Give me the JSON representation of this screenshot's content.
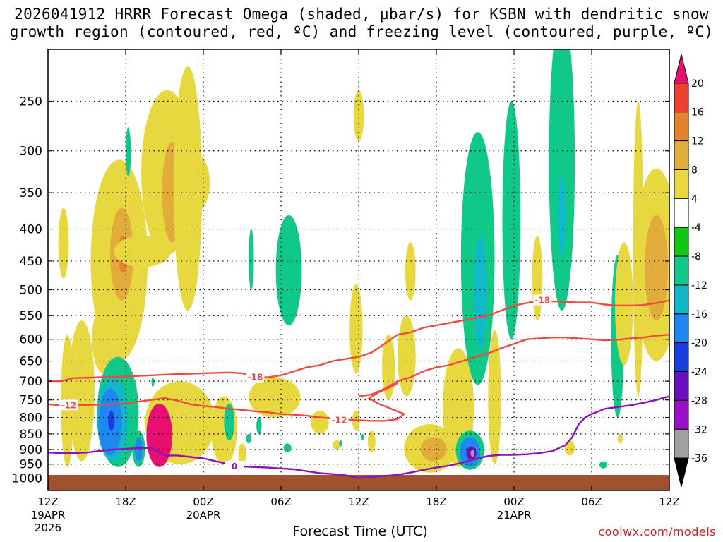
{
  "chart_data": {
    "type": "heatmap",
    "title_line1": "2026041912 HRRR Forecast Omega (shaded, µbar/s) for KSBN with dendritic snow",
    "title_line2": "growth region (contoured, red, ºC) and freezing level (contoured, purple, ºC)",
    "xlabel": "Forecast Time (UTC)",
    "ylabel": "",
    "credit": "coolwx.com/models",
    "x_range_hours": [
      0,
      48
    ],
    "y_range_hpa": [
      1000,
      200
    ],
    "x_ticks": [
      {
        "h": 0,
        "label": "12Z",
        "sub1": "19APR",
        "sub2": "2026"
      },
      {
        "h": 6,
        "label": "18Z",
        "sub1": "",
        "sub2": ""
      },
      {
        "h": 12,
        "label": "00Z",
        "sub1": "20APR",
        "sub2": ""
      },
      {
        "h": 18,
        "label": "06Z",
        "sub1": "",
        "sub2": ""
      },
      {
        "h": 24,
        "label": "12Z",
        "sub1": "",
        "sub2": ""
      },
      {
        "h": 30,
        "label": "18Z",
        "sub1": "",
        "sub2": ""
      },
      {
        "h": 36,
        "label": "00Z",
        "sub1": "21APR",
        "sub2": ""
      },
      {
        "h": 42,
        "label": "06Z",
        "sub1": "",
        "sub2": ""
      },
      {
        "h": 48,
        "label": "12Z",
        "sub1": "",
        "sub2": ""
      }
    ],
    "y_ticks": [
      "250",
      "300",
      "350",
      "400",
      "450",
      "500",
      "550",
      "600",
      "650",
      "700",
      "750",
      "800",
      "850",
      "900",
      "950",
      "1000"
    ],
    "colorbar": {
      "levels": [
        "20",
        "16",
        "12",
        "8",
        "4",
        "-4",
        "-8",
        "-12",
        "-16",
        "-20",
        "-24",
        "-28",
        "-32",
        "-36"
      ],
      "colors": [
        "#e8106e",
        "#f04030",
        "#e8822a",
        "#e2ac3a",
        "#e8d840",
        "#ffffff",
        "#10c810",
        "#10c888",
        "#10b8c8",
        "#1e88f0",
        "#1840e0",
        "#6a10c0",
        "#9a10c8",
        "#a0a0a0",
        "#000000"
      ]
    },
    "contours": [
      {
        "name": "dgz-minus18",
        "label": "-18",
        "color": "#f04a40",
        "points": [
          [
            0,
            700
          ],
          [
            1,
            700
          ],
          [
            2,
            692
          ],
          [
            4,
            690
          ],
          [
            6,
            688
          ],
          [
            8,
            685
          ],
          [
            10,
            682
          ],
          [
            12,
            680
          ],
          [
            14,
            678
          ],
          [
            15,
            680
          ],
          [
            16,
            690
          ],
          [
            17,
            690
          ],
          [
            18,
            685
          ],
          [
            19,
            675
          ],
          [
            20,
            665
          ],
          [
            21,
            660
          ],
          [
            22,
            650
          ],
          [
            23,
            645
          ],
          [
            24,
            640
          ],
          [
            25,
            630
          ],
          [
            26,
            610
          ],
          [
            27,
            590
          ],
          [
            28,
            585
          ],
          [
            29,
            575
          ],
          [
            30,
            570
          ],
          [
            31,
            565
          ],
          [
            32,
            560
          ],
          [
            33,
            555
          ],
          [
            34,
            550
          ],
          [
            35,
            540
          ],
          [
            36,
            530
          ],
          [
            37,
            525
          ],
          [
            38,
            520
          ],
          [
            39,
            522
          ],
          [
            40,
            523
          ],
          [
            41,
            524
          ],
          [
            42,
            524
          ],
          [
            43,
            528
          ],
          [
            44,
            530
          ],
          [
            45,
            530
          ],
          [
            46,
            529
          ],
          [
            47,
            525
          ],
          [
            48,
            520
          ]
        ]
      },
      {
        "name": "dgz-minus18-lower",
        "label": "",
        "color": "#f04a40",
        "points": [
          [
            24,
            740
          ],
          [
            25,
            735
          ],
          [
            26,
            720
          ],
          [
            27,
            700
          ],
          [
            28,
            690
          ],
          [
            29,
            675
          ],
          [
            30,
            665
          ],
          [
            31,
            660
          ],
          [
            32,
            650
          ],
          [
            33,
            640
          ],
          [
            34,
            632
          ],
          [
            35,
            620
          ],
          [
            36,
            610
          ],
          [
            37,
            600
          ],
          [
            38,
            598
          ],
          [
            39,
            596
          ],
          [
            40,
            596
          ],
          [
            41,
            598
          ],
          [
            42,
            600
          ],
          [
            43,
            602
          ],
          [
            44,
            601
          ],
          [
            45,
            598
          ],
          [
            46,
            596
          ],
          [
            47,
            592
          ],
          [
            48,
            590
          ]
        ]
      },
      {
        "name": "dgz-minus12",
        "label": "-12",
        "color": "#f04a40",
        "points": [
          [
            0,
            762
          ],
          [
            1,
            765
          ],
          [
            2,
            765
          ],
          [
            4,
            763
          ],
          [
            6,
            760
          ],
          [
            7,
            755
          ],
          [
            8,
            750
          ],
          [
            9,
            745
          ],
          [
            10,
            752
          ],
          [
            11,
            762
          ],
          [
            12,
            767
          ],
          [
            13,
            770
          ],
          [
            14,
            775
          ],
          [
            15,
            778
          ],
          [
            16,
            782
          ],
          [
            17,
            785
          ],
          [
            18,
            790
          ],
          [
            19,
            792
          ],
          [
            20,
            795
          ],
          [
            21,
            800
          ],
          [
            22,
            803
          ],
          [
            23,
            806
          ],
          [
            24,
            808
          ],
          [
            25,
            810
          ],
          [
            26,
            810
          ],
          [
            27,
            805
          ],
          [
            27.5,
            790
          ],
          [
            26.5,
            775
          ],
          [
            25.5,
            760
          ],
          [
            24.8,
            745
          ],
          [
            25.5,
            730
          ],
          [
            26.5,
            715
          ],
          [
            27,
            705
          ]
        ]
      },
      {
        "name": "freezing-level",
        "label": "0",
        "color": "#9010c0",
        "points": [
          [
            0,
            910
          ],
          [
            1,
            912
          ],
          [
            2,
            912
          ],
          [
            3,
            910
          ],
          [
            4,
            905
          ],
          [
            5,
            900
          ],
          [
            6,
            898
          ],
          [
            7,
            895
          ],
          [
            8,
            895
          ],
          [
            9,
            920
          ],
          [
            10,
            920
          ],
          [
            11,
            925
          ],
          [
            12,
            930
          ],
          [
            13,
            940
          ],
          [
            14,
            950
          ],
          [
            15,
            958
          ],
          [
            16,
            960
          ],
          [
            17,
            962
          ],
          [
            18,
            965
          ],
          [
            19,
            968
          ],
          [
            20,
            975
          ],
          [
            21,
            982
          ],
          [
            22,
            985
          ],
          [
            23,
            990
          ],
          [
            24,
            1000
          ],
          [
            25,
            995
          ],
          [
            26,
            992
          ],
          [
            27,
            988
          ],
          [
            28,
            980
          ],
          [
            29,
            970
          ],
          [
            30,
            962
          ],
          [
            31,
            955
          ],
          [
            32,
            945
          ],
          [
            33,
            932
          ],
          [
            34,
            922
          ],
          [
            35,
            918
          ],
          [
            36,
            918
          ],
          [
            37,
            916
          ],
          [
            38,
            912
          ],
          [
            39,
            905
          ],
          [
            40,
            885
          ],
          [
            40.5,
            860
          ],
          [
            41,
            820
          ],
          [
            41.5,
            800
          ],
          [
            42,
            790
          ],
          [
            43,
            775
          ],
          [
            44,
            770
          ],
          [
            45,
            765
          ],
          [
            46,
            758
          ],
          [
            47,
            750
          ],
          [
            48,
            740
          ]
        ]
      }
    ],
    "shaded_regions": [
      {
        "val": 4,
        "cx": 1.2,
        "hw": 0.4,
        "p1": 370,
        "p2": 480
      },
      {
        "val": 4,
        "cx": 1.5,
        "hw": 0.5,
        "p1": 590,
        "p2": 960
      },
      {
        "val": 4,
        "cx": 2.6,
        "hw": 1.0,
        "p1": 560,
        "p2": 940
      },
      {
        "val": 4,
        "cx": 4.3,
        "hw": 0.9,
        "p1": 530,
        "p2": 680
      },
      {
        "val": 4,
        "cx": 5.5,
        "hw": 2.2,
        "p1": 310,
        "p2": 650
      },
      {
        "val": 8,
        "cx": 5.7,
        "hw": 0.9,
        "p1": 370,
        "p2": 520
      },
      {
        "val": 12,
        "cx": 5.8,
        "hw": 0.4,
        "p1": 410,
        "p2": 470
      },
      {
        "val": 4,
        "cx": 7.3,
        "hw": 2.2,
        "p1": 410,
        "p2": 460
      },
      {
        "val": 4,
        "cx": 9.2,
        "hw": 2.0,
        "p1": 240,
        "p2": 440
      },
      {
        "val": 8,
        "cx": 9.6,
        "hw": 0.8,
        "p1": 290,
        "p2": 420
      },
      {
        "val": 4,
        "cx": 10.8,
        "hw": 1.1,
        "p1": 220,
        "p2": 540
      },
      {
        "val": 4,
        "cx": 11.1,
        "hw": 1.4,
        "p1": 300,
        "p2": 380
      },
      {
        "val": 4,
        "cx": 10.2,
        "hw": 2.7,
        "p1": 700,
        "p2": 950
      },
      {
        "val": -8,
        "cx": 6.2,
        "hw": 0.2,
        "p1": 275,
        "p2": 330
      },
      {
        "val": -8,
        "cx": 5.4,
        "hw": 1.6,
        "p1": 640,
        "p2": 960
      },
      {
        "val": -12,
        "cx": 5.0,
        "hw": 1.2,
        "p1": 690,
        "p2": 940
      },
      {
        "val": -16,
        "cx": 4.8,
        "hw": 0.9,
        "p1": 720,
        "p2": 920
      },
      {
        "val": -20,
        "cx": 4.9,
        "hw": 0.25,
        "p1": 780,
        "p2": 840
      },
      {
        "val": -8,
        "cx": 7.0,
        "hw": 0.5,
        "p1": 840,
        "p2": 960
      },
      {
        "val": -16,
        "cx": 7.0,
        "hw": 0.3,
        "p1": 860,
        "p2": 940
      },
      {
        "val": 20,
        "cx": 8.6,
        "hw": 1.0,
        "p1": 760,
        "p2": 960
      },
      {
        "val": -8,
        "cx": 8.1,
        "hw": 0.1,
        "p1": 690,
        "p2": 715
      },
      {
        "val": 4,
        "cx": 13.6,
        "hw": 1.0,
        "p1": 740,
        "p2": 950
      },
      {
        "val": -8,
        "cx": 14.0,
        "hw": 0.4,
        "p1": 760,
        "p2": 870
      },
      {
        "val": 4,
        "cx": 15.0,
        "hw": 0.3,
        "p1": 880,
        "p2": 950
      },
      {
        "val": -8,
        "cx": 15.5,
        "hw": 0.2,
        "p1": 850,
        "p2": 880
      },
      {
        "val": -8,
        "cx": 15.7,
        "hw": 0.2,
        "p1": 400,
        "p2": 500
      },
      {
        "val": -8,
        "cx": 16.3,
        "hw": 0.2,
        "p1": 800,
        "p2": 850
      },
      {
        "val": 4,
        "cx": 17.5,
        "hw": 2.0,
        "p1": 690,
        "p2": 800
      },
      {
        "val": -8,
        "cx": 18.6,
        "hw": 1.0,
        "p1": 380,
        "p2": 570
      },
      {
        "val": -8,
        "cx": 18.5,
        "hw": 0.3,
        "p1": 880,
        "p2": 910
      },
      {
        "val": 4,
        "cx": 21.0,
        "hw": 0.7,
        "p1": 780,
        "p2": 850
      },
      {
        "val": 4,
        "cx": 22.3,
        "hw": 0.3,
        "p1": 870,
        "p2": 900
      },
      {
        "val": -8,
        "cx": 22.6,
        "hw": 0.1,
        "p1": 870,
        "p2": 890
      },
      {
        "val": 4,
        "cx": 23.8,
        "hw": 0.5,
        "p1": 490,
        "p2": 680
      },
      {
        "val": 4,
        "cx": 24.0,
        "hw": 0.4,
        "p1": 240,
        "p2": 290
      },
      {
        "val": 4,
        "cx": 23.8,
        "hw": 0.3,
        "p1": 780,
        "p2": 840
      },
      {
        "val": -8,
        "cx": 24.3,
        "hw": 0.1,
        "p1": 850,
        "p2": 870
      },
      {
        "val": 4,
        "cx": 25.0,
        "hw": 0.3,
        "p1": 840,
        "p2": 910
      },
      {
        "val": 4,
        "cx": 26.3,
        "hw": 0.5,
        "p1": 590,
        "p2": 750
      },
      {
        "val": 4,
        "cx": 28.0,
        "hw": 0.4,
        "p1": 420,
        "p2": 520
      },
      {
        "val": 4,
        "cx": 27.7,
        "hw": 0.7,
        "p1": 550,
        "p2": 740
      },
      {
        "val": 4,
        "cx": 29.5,
        "hw": 2.0,
        "p1": 820,
        "p2": 980
      },
      {
        "val": 8,
        "cx": 29.8,
        "hw": 1.0,
        "p1": 860,
        "p2": 940
      },
      {
        "val": 4,
        "cx": 31.7,
        "hw": 1.2,
        "p1": 620,
        "p2": 960
      },
      {
        "val": -8,
        "cx": 33.2,
        "hw": 1.3,
        "p1": 280,
        "p2": 710
      },
      {
        "val": -12,
        "cx": 33.4,
        "hw": 0.5,
        "p1": 410,
        "p2": 620
      },
      {
        "val": -8,
        "cx": 32.6,
        "hw": 1.1,
        "p1": 840,
        "p2": 970
      },
      {
        "val": -16,
        "cx": 32.6,
        "hw": 0.8,
        "p1": 860,
        "p2": 960
      },
      {
        "val": -24,
        "cx": 32.7,
        "hw": 0.4,
        "p1": 890,
        "p2": 935
      },
      {
        "val": -32,
        "cx": 32.8,
        "hw": 0.15,
        "p1": 900,
        "p2": 925
      },
      {
        "val": 4,
        "cx": 34.5,
        "hw": 0.5,
        "p1": 580,
        "p2": 950
      },
      {
        "val": -8,
        "cx": 35.8,
        "hw": 0.7,
        "p1": 250,
        "p2": 600
      },
      {
        "val": 4,
        "cx": 37.8,
        "hw": 0.4,
        "p1": 410,
        "p2": 560
      },
      {
        "val": -8,
        "cx": 39.7,
        "hw": 1.0,
        "p1": 180,
        "p2": 540
      },
      {
        "val": -12,
        "cx": 39.7,
        "hw": 0.3,
        "p1": 330,
        "p2": 440
      },
      {
        "val": 4,
        "cx": 40.3,
        "hw": 0.4,
        "p1": 870,
        "p2": 920
      },
      {
        "val": -8,
        "cx": 42.9,
        "hw": 0.3,
        "p1": 940,
        "p2": 965
      },
      {
        "val": 4,
        "cx": 44.2,
        "hw": 0.2,
        "p1": 850,
        "p2": 880
      },
      {
        "val": -8,
        "cx": 44.0,
        "hw": 0.5,
        "p1": 440,
        "p2": 800
      },
      {
        "val": 4,
        "cx": 44.5,
        "hw": 0.7,
        "p1": 420,
        "p2": 660
      },
      {
        "val": 4,
        "cx": 45.6,
        "hw": 0.4,
        "p1": 250,
        "p2": 740
      },
      {
        "val": 4,
        "cx": 47.0,
        "hw": 1.7,
        "p1": 320,
        "p2": 650
      },
      {
        "val": 8,
        "cx": 47.0,
        "hw": 0.9,
        "p1": 380,
        "p2": 560
      }
    ]
  }
}
